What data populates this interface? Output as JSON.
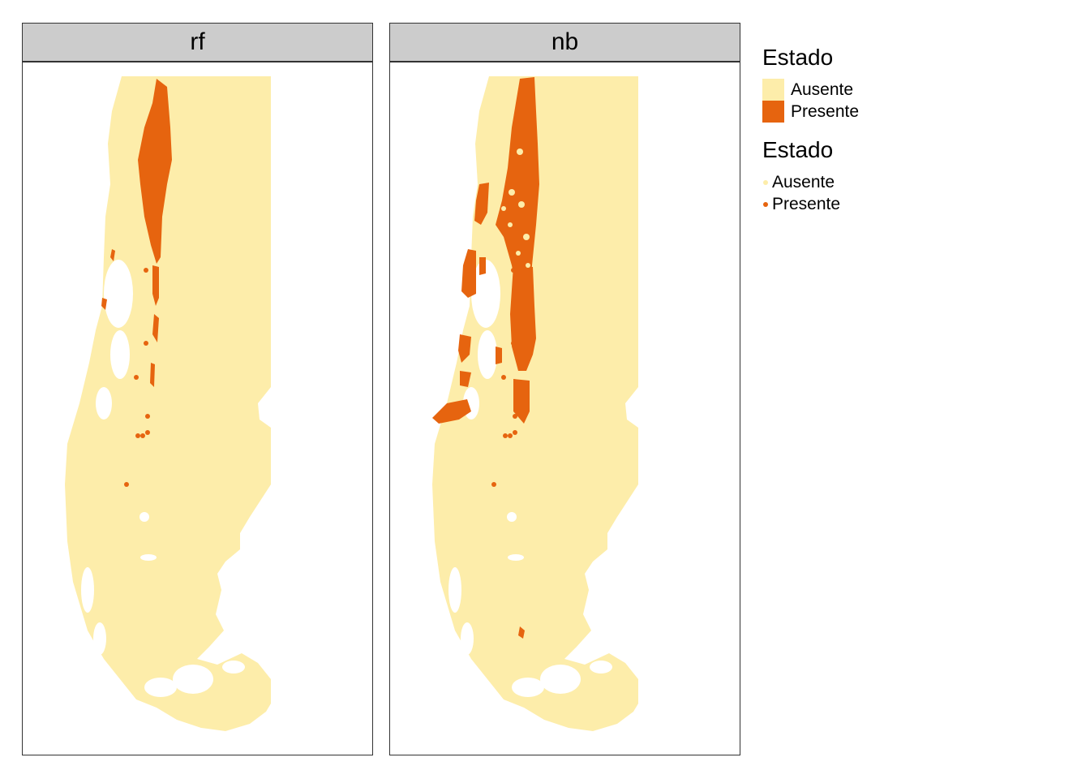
{
  "panels": [
    {
      "label": "rf"
    },
    {
      "label": "nb"
    }
  ],
  "legend_fill": {
    "title": "Estado",
    "items": [
      {
        "label": "Ausente",
        "color": "#fdedaa"
      },
      {
        "label": "Presente",
        "color": "#e6640f"
      }
    ]
  },
  "legend_points": {
    "title": "Estado",
    "items": [
      {
        "label": "Ausente",
        "color": "#fdedaa"
      },
      {
        "label": "Presente",
        "color": "#e6640f"
      }
    ]
  },
  "colors": {
    "absent": "#fdedaa",
    "present": "#e6640f",
    "strip": "#cccccc",
    "border": "#333333"
  }
}
